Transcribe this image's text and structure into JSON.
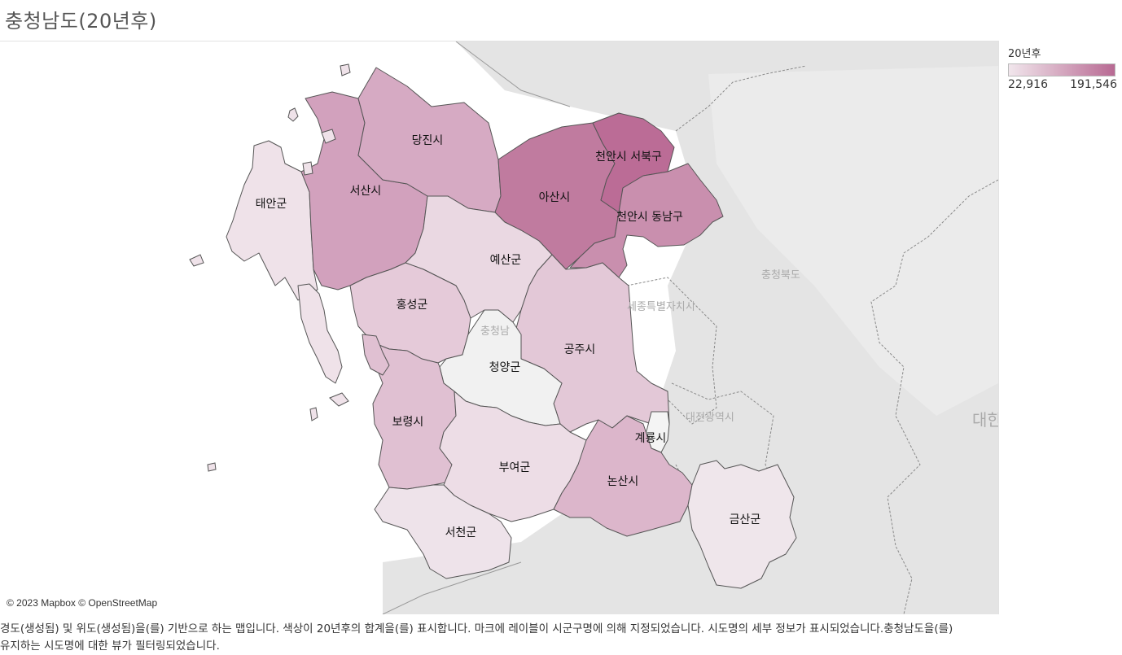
{
  "title": "충청남도(20년후)",
  "legend": {
    "title": "20년후",
    "min_label": "22,916",
    "max_label": "191,546",
    "color_low": "#f1e6ec",
    "color_high": "#b86a93"
  },
  "attribution": "© 2023 Mapbox © OpenStreetMap",
  "caption": "경도(생성됨) 및 위도(생성됨)을(를) 기반으로 하는 맵입니다. 색상이 20년후의 합계을(를) 표시합니다. 마크에 레이블이 시군구명에 의해 지정되었습니다. 시도명의 세부 정보가 표시되었습니다.충청남도을(를) 유지하는 시도명에 대한 뷰가 필터링되었습니다.",
  "background_labels": {
    "chungbuk": "충청북도",
    "sejong": "세종특별자치시",
    "chungnam": "충청남",
    "daejeon": "대전광역시",
    "daehan": "대한"
  },
  "regions": [
    {
      "id": "dangjin",
      "name": "당진시",
      "color": "#d6aac3"
    },
    {
      "id": "seosan",
      "name": "서산시",
      "color": "#d2a1bd"
    },
    {
      "id": "taean",
      "name": "태안군",
      "color": "#efe2e9"
    },
    {
      "id": "asan",
      "name": "아산시",
      "color": "#c07b9f"
    },
    {
      "id": "cheonan-seobuk",
      "name": "천안시 서북구",
      "color": "#bb6c96"
    },
    {
      "id": "cheonan-dongnam",
      "name": "천안시 동남구",
      "color": "#c98fae"
    },
    {
      "id": "yesan",
      "name": "예산군",
      "color": "#ead8e2"
    },
    {
      "id": "hongseong",
      "name": "홍성군",
      "color": "#e5cad9"
    },
    {
      "id": "gongju",
      "name": "공주시",
      "color": "#e3c8d7"
    },
    {
      "id": "cheongyang",
      "name": "청양군",
      "color": "#f1f1f1"
    },
    {
      "id": "boryeong",
      "name": "보령시",
      "color": "#e0c0d2"
    },
    {
      "id": "buyeo",
      "name": "부여군",
      "color": "#eddde6"
    },
    {
      "id": "gyeryong",
      "name": "계룡시",
      "color": "#f4f4f4"
    },
    {
      "id": "nonsan",
      "name": "논산시",
      "color": "#dcb6cb"
    },
    {
      "id": "seocheon",
      "name": "서천군",
      "color": "#eee3ea"
    },
    {
      "id": "geumsan",
      "name": "금산군",
      "color": "#efe6eb"
    }
  ]
}
